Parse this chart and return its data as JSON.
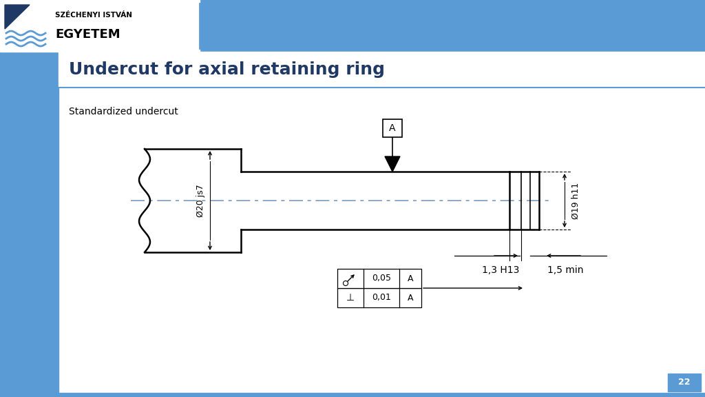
{
  "title": "Undercut for axial retaining ring",
  "subtitle": "Standardized undercut",
  "bg_color": "#ffffff",
  "slide_number": "22",
  "header_blue": "#5b9bd5",
  "sidebar_blue": "#5b9bd5",
  "title_color": "#1f3864",
  "line_color": "#000000",
  "dim_label_20js7": "Ø20 js7",
  "dim_label_19h11": "Ø19 h11",
  "dim_label_13H13": "1,3 H13",
  "dim_label_15min": "1,5 min",
  "datum_label": "A",
  "tol_row1_sym": "⊥",
  "tol_row1_val": "0,01",
  "tol_row1_dat": "A",
  "tol_row2_val": "0,05",
  "tol_row2_dat": "A"
}
